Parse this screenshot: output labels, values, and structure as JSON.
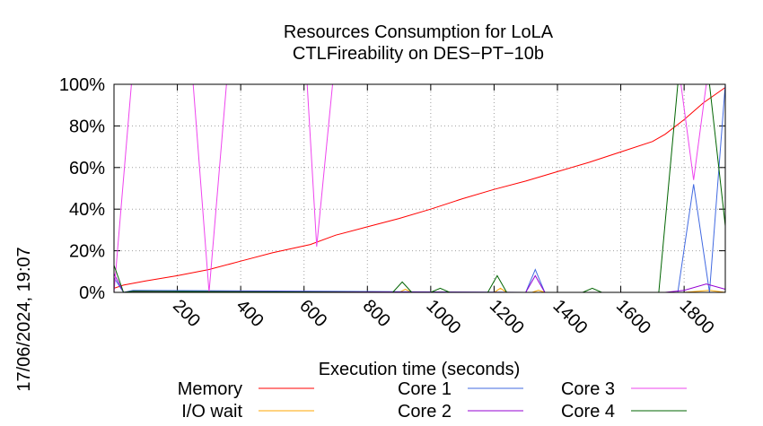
{
  "chart_data": {
    "type": "line",
    "title": "Resources Consumption for LoLA",
    "subtitle": "CTLFireability on DES−PT−10b",
    "xlabel": "Execution time (seconds)",
    "ylabel": "",
    "timestamp": "17/06/2024, 19:07",
    "xlim": [
      0,
      1930
    ],
    "ylim": [
      0,
      100
    ],
    "x_ticks": [
      200,
      400,
      600,
      800,
      1000,
      1200,
      1400,
      1600,
      1800
    ],
    "y_ticks": [
      0,
      20,
      40,
      60,
      80,
      100
    ],
    "y_tick_labels": [
      "0%",
      "20%",
      "40%",
      "60%",
      "80%",
      "100%"
    ],
    "grid": true,
    "legend_position": "bottom",
    "series": [
      {
        "name": "Memory",
        "color": "#ff0000",
        "x": [
          0,
          30,
          100,
          200,
          300,
          400,
          500,
          620,
          700,
          800,
          900,
          1000,
          1100,
          1200,
          1300,
          1400,
          1500,
          1600,
          1700,
          1740,
          1800,
          1860,
          1930
        ],
        "y": [
          2,
          3.5,
          5.5,
          8,
          11,
          15,
          19,
          23,
          27.5,
          31.5,
          35.5,
          40,
          45,
          49.5,
          53.5,
          58,
          62.5,
          67.5,
          72.5,
          76,
          83,
          91,
          98.5
        ]
      },
      {
        "name": "I/O wait",
        "color": "#ffa500",
        "x": [
          0,
          20,
          900,
          920,
          940,
          1200,
          1220,
          1240,
          1320,
          1340,
          1360,
          1800,
          1880,
          1930
        ],
        "y": [
          0,
          0,
          0,
          1.5,
          0,
          0,
          2,
          0,
          0,
          1,
          0,
          0,
          1,
          0
        ]
      },
      {
        "name": "Core 1",
        "color": "#4169e1",
        "x": [
          0,
          30,
          60,
          1300,
          1330,
          1360,
          1780,
          1830,
          1880,
          1930
        ],
        "y": [
          7,
          0,
          1,
          0,
          11,
          0,
          0,
          52,
          0,
          100
        ]
      },
      {
        "name": "Core 2",
        "color": "#9400d3",
        "x": [
          0,
          30,
          60,
          1300,
          1330,
          1360,
          1740,
          1800,
          1870,
          1930
        ],
        "y": [
          9,
          0,
          0.5,
          0,
          8,
          0,
          0,
          1,
          4,
          1.5
        ]
      },
      {
        "name": "Core 3",
        "color": "#ee44ee",
        "x": [
          0,
          55,
          250,
          300,
          355,
          610,
          640,
          690,
          1790,
          1830,
          1870,
          1930
        ],
        "y": [
          0,
          100,
          100,
          0,
          100,
          100,
          22,
          100,
          100,
          54,
          100,
          100
        ]
      },
      {
        "name": "Core 4",
        "color": "#006400",
        "x": [
          0,
          30,
          60,
          880,
          910,
          940,
          1000,
          1030,
          1060,
          1180,
          1210,
          1240,
          1480,
          1510,
          1540,
          1720,
          1780,
          1880,
          1930
        ],
        "y": [
          13,
          0,
          0.5,
          0,
          5,
          0,
          0,
          2,
          0,
          0,
          8,
          0,
          0,
          2,
          0,
          0,
          100,
          100,
          32
        ]
      }
    ]
  }
}
